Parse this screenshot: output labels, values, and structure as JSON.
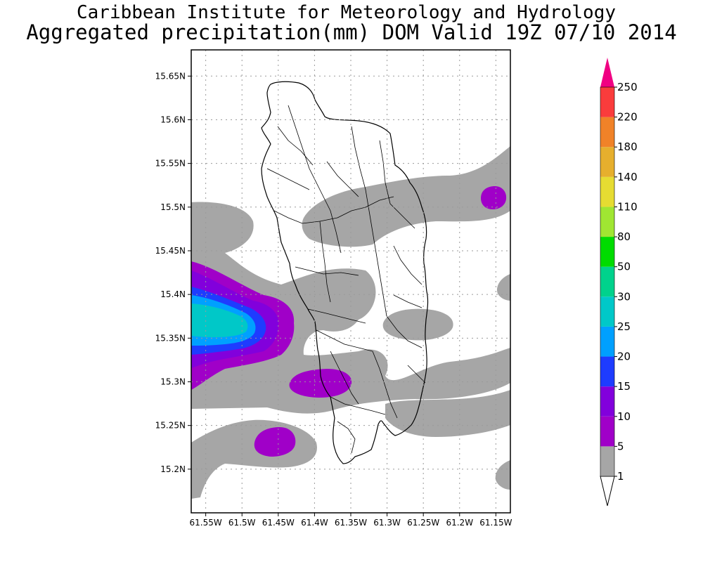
{
  "header": {
    "title_line1": "Caribbean Institute for Meteorology and Hydrology",
    "title_line2": "Aggregated precipitation(mm) DOM Valid 19Z 07/10 2014"
  },
  "map": {
    "lon_range": [
      -61.57,
      -61.13
    ],
    "lat_range": [
      15.15,
      15.68
    ],
    "gridlines": true,
    "lon_labels": [
      "61.55W",
      "61.5W",
      "61.45W",
      "61.4W",
      "61.35W",
      "61.3W",
      "61.25W",
      "61.2W",
      "61.15W"
    ],
    "lon_values": [
      -61.55,
      -61.5,
      -61.45,
      -61.4,
      -61.35,
      -61.3,
      -61.25,
      -61.2,
      -61.15
    ],
    "lat_labels": [
      "15.65N",
      "15.6N",
      "15.55N",
      "15.5N",
      "15.45N",
      "15.4N",
      "15.35N",
      "15.3N",
      "15.25N",
      "15.2N"
    ],
    "lat_values": [
      15.65,
      15.6,
      15.55,
      15.5,
      15.45,
      15.4,
      15.35,
      15.3,
      15.25,
      15.2
    ]
  },
  "legend": {
    "labels": [
      "1",
      "5",
      "10",
      "15",
      "20",
      "25",
      "30",
      "50",
      "80",
      "110",
      "140",
      "180",
      "220",
      "250"
    ],
    "colors": [
      "#a6a6a6",
      "#a000c8",
      "#8200dc",
      "#1e3cff",
      "#00a0ff",
      "#00c8c8",
      "#00d28c",
      "#00dc00",
      "#a0e632",
      "#e6dc32",
      "#e6af2d",
      "#f08228",
      "#fa3c3c",
      "#f00082"
    ]
  }
}
